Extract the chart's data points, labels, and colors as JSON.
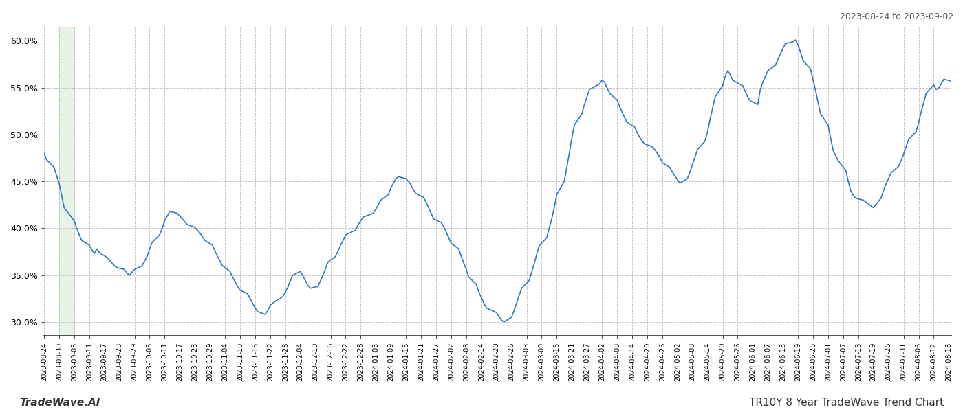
{
  "title_top_right": "2023-08-24 to 2023-09-02",
  "title_bottom_left": "TradeWave.AI",
  "title_bottom_right": "TR10Y 8 Year TradeWave Trend Chart",
  "line_color": "#2878c8",
  "highlight_color": "#c8e6c9",
  "highlight_alpha": 0.45,
  "highlight_start": "2023-08-30",
  "highlight_end": "2023-09-05",
  "ylim": [
    0.285,
    0.615
  ],
  "yticks": [
    0.3,
    0.35,
    0.4,
    0.45,
    0.5,
    0.55,
    0.6
  ],
  "background_color": "#ffffff",
  "grid_color": "#bbbbbb",
  "dates": [
    "2023-08-24",
    "2023-08-25",
    "2023-08-28",
    "2023-08-29",
    "2023-08-30",
    "2023-08-31",
    "2023-09-01",
    "2023-09-05",
    "2023-09-06",
    "2023-09-07",
    "2023-09-08",
    "2023-09-11",
    "2023-09-12",
    "2023-09-13",
    "2023-09-14",
    "2023-09-15",
    "2023-09-18",
    "2023-09-19",
    "2023-09-20",
    "2023-09-21",
    "2023-09-22",
    "2023-09-25",
    "2023-09-26",
    "2023-09-27",
    "2023-09-28",
    "2023-09-29",
    "2023-10-02",
    "2023-10-03",
    "2023-10-04",
    "2023-10-05",
    "2023-10-06",
    "2023-10-09",
    "2023-10-10",
    "2023-10-11",
    "2023-10-12",
    "2023-10-13",
    "2023-10-16",
    "2023-10-17",
    "2023-10-18",
    "2023-10-19",
    "2023-10-20",
    "2023-10-23",
    "2023-10-24",
    "2023-10-25",
    "2023-10-26",
    "2023-10-27",
    "2023-10-30",
    "2023-10-31",
    "2023-11-01",
    "2023-11-02",
    "2023-11-03",
    "2023-11-06",
    "2023-11-07",
    "2023-11-08",
    "2023-11-09",
    "2023-11-10",
    "2023-11-13",
    "2023-11-14",
    "2023-11-15",
    "2023-11-16",
    "2023-11-17",
    "2023-11-20",
    "2023-11-21",
    "2023-11-22",
    "2023-11-24",
    "2023-11-27",
    "2023-11-28",
    "2023-11-29",
    "2023-11-30",
    "2023-12-01",
    "2023-12-04",
    "2023-12-05",
    "2023-12-06",
    "2023-12-07",
    "2023-12-08",
    "2023-12-11",
    "2023-12-12",
    "2023-12-13",
    "2023-12-14",
    "2023-12-15",
    "2023-12-18",
    "2023-12-19",
    "2023-12-20",
    "2023-12-21",
    "2023-12-22",
    "2023-12-26",
    "2023-12-27",
    "2023-12-28",
    "2023-12-29",
    "2024-01-02",
    "2024-01-03",
    "2024-01-04",
    "2024-01-05",
    "2024-01-08",
    "2024-01-09",
    "2024-01-10",
    "2024-01-11",
    "2024-01-12",
    "2024-01-15",
    "2024-01-16",
    "2024-01-17",
    "2024-01-18",
    "2024-01-19",
    "2024-01-22",
    "2024-01-23",
    "2024-01-24",
    "2024-01-25",
    "2024-01-26",
    "2024-01-29",
    "2024-01-30",
    "2024-01-31",
    "2024-02-01",
    "2024-02-02",
    "2024-02-05",
    "2024-02-06",
    "2024-02-07",
    "2024-02-08",
    "2024-02-09",
    "2024-02-12",
    "2024-02-13",
    "2024-02-14",
    "2024-02-15",
    "2024-02-16",
    "2024-02-20",
    "2024-02-21",
    "2024-02-22",
    "2024-02-23",
    "2024-02-26",
    "2024-02-27",
    "2024-02-28",
    "2024-02-29",
    "2024-03-01",
    "2024-03-04",
    "2024-03-05",
    "2024-03-06",
    "2024-03-07",
    "2024-03-08",
    "2024-03-11",
    "2024-03-12",
    "2024-03-13",
    "2024-03-14",
    "2024-03-15",
    "2024-03-18",
    "2024-03-19",
    "2024-03-20",
    "2024-03-21",
    "2024-03-22",
    "2024-03-25",
    "2024-03-26",
    "2024-03-27",
    "2024-03-28",
    "2024-04-01",
    "2024-04-02",
    "2024-04-03",
    "2024-04-04",
    "2024-04-05",
    "2024-04-08",
    "2024-04-09",
    "2024-04-10",
    "2024-04-11",
    "2024-04-12",
    "2024-04-15",
    "2024-04-16",
    "2024-04-17",
    "2024-04-18",
    "2024-04-19",
    "2024-04-22",
    "2024-04-23",
    "2024-04-24",
    "2024-04-25",
    "2024-04-26",
    "2024-04-29",
    "2024-04-30",
    "2024-05-01",
    "2024-05-02",
    "2024-05-03",
    "2024-05-06",
    "2024-05-07",
    "2024-05-08",
    "2024-05-09",
    "2024-05-10",
    "2024-05-13",
    "2024-05-14",
    "2024-05-15",
    "2024-05-16",
    "2024-05-17",
    "2024-05-20",
    "2024-05-21",
    "2024-05-22",
    "2024-05-23",
    "2024-05-24",
    "2024-05-28",
    "2024-05-29",
    "2024-05-30",
    "2024-05-31",
    "2024-06-03",
    "2024-06-04",
    "2024-06-05",
    "2024-06-06",
    "2024-06-07",
    "2024-06-10",
    "2024-06-11",
    "2024-06-12",
    "2024-06-13",
    "2024-06-14",
    "2024-06-17",
    "2024-06-18",
    "2024-06-19",
    "2024-06-20",
    "2024-06-21",
    "2024-06-24",
    "2024-06-25",
    "2024-06-26",
    "2024-06-27",
    "2024-06-28",
    "2024-07-01",
    "2024-07-02",
    "2024-07-03",
    "2024-07-05",
    "2024-07-08",
    "2024-07-09",
    "2024-07-10",
    "2024-07-11",
    "2024-07-12",
    "2024-07-15",
    "2024-07-16",
    "2024-07-17",
    "2024-07-18",
    "2024-07-19",
    "2024-07-22",
    "2024-07-23",
    "2024-07-24",
    "2024-07-25",
    "2024-07-26",
    "2024-07-29",
    "2024-07-30",
    "2024-07-31",
    "2024-08-01",
    "2024-08-02",
    "2024-08-05",
    "2024-08-06",
    "2024-08-07",
    "2024-08-08",
    "2024-08-09",
    "2024-08-12",
    "2024-08-13",
    "2024-08-14",
    "2024-08-15",
    "2024-08-16",
    "2024-08-19"
  ],
  "values": [
    0.48,
    0.473,
    0.465,
    0.456,
    0.448,
    0.435,
    0.422,
    0.408,
    0.4,
    0.393,
    0.387,
    0.382,
    0.377,
    0.373,
    0.378,
    0.374,
    0.369,
    0.366,
    0.363,
    0.36,
    0.358,
    0.356,
    0.352,
    0.35,
    0.353,
    0.356,
    0.36,
    0.365,
    0.37,
    0.378,
    0.385,
    0.393,
    0.4,
    0.408,
    0.413,
    0.418,
    0.416,
    0.413,
    0.41,
    0.407,
    0.404,
    0.401,
    0.398,
    0.395,
    0.391,
    0.387,
    0.382,
    0.376,
    0.37,
    0.365,
    0.36,
    0.354,
    0.348,
    0.343,
    0.338,
    0.334,
    0.33,
    0.325,
    0.32,
    0.315,
    0.311,
    0.308,
    0.312,
    0.318,
    0.322,
    0.327,
    0.332,
    0.337,
    0.344,
    0.35,
    0.354,
    0.349,
    0.344,
    0.339,
    0.336,
    0.338,
    0.344,
    0.35,
    0.357,
    0.364,
    0.37,
    0.376,
    0.382,
    0.387,
    0.393,
    0.398,
    0.404,
    0.408,
    0.412,
    0.416,
    0.42,
    0.425,
    0.43,
    0.436,
    0.443,
    0.448,
    0.453,
    0.455,
    0.453,
    0.45,
    0.446,
    0.441,
    0.437,
    0.433,
    0.428,
    0.422,
    0.416,
    0.41,
    0.406,
    0.402,
    0.396,
    0.39,
    0.384,
    0.378,
    0.37,
    0.363,
    0.356,
    0.348,
    0.34,
    0.332,
    0.326,
    0.32,
    0.315,
    0.31,
    0.306,
    0.302,
    0.3,
    0.305,
    0.312,
    0.32,
    0.328,
    0.336,
    0.344,
    0.353,
    0.362,
    0.372,
    0.381,
    0.39,
    0.4,
    0.41,
    0.422,
    0.436,
    0.45,
    0.465,
    0.48,
    0.496,
    0.51,
    0.522,
    0.532,
    0.54,
    0.548,
    0.554,
    0.558,
    0.556,
    0.55,
    0.544,
    0.537,
    0.53,
    0.524,
    0.518,
    0.513,
    0.508,
    0.502,
    0.497,
    0.493,
    0.49,
    0.487,
    0.484,
    0.48,
    0.476,
    0.47,
    0.465,
    0.46,
    0.456,
    0.452,
    0.448,
    0.453,
    0.46,
    0.468,
    0.476,
    0.484,
    0.493,
    0.503,
    0.516,
    0.528,
    0.54,
    0.552,
    0.562,
    0.568,
    0.564,
    0.558,
    0.552,
    0.546,
    0.54,
    0.536,
    0.532,
    0.548,
    0.556,
    0.562,
    0.568,
    0.574,
    0.58,
    0.586,
    0.592,
    0.597,
    0.599,
    0.601,
    0.596,
    0.588,
    0.579,
    0.57,
    0.558,
    0.547,
    0.534,
    0.522,
    0.51,
    0.496,
    0.483,
    0.472,
    0.462,
    0.45,
    0.44,
    0.435,
    0.432,
    0.43,
    0.428,
    0.426,
    0.424,
    0.422,
    0.432,
    0.44,
    0.447,
    0.453,
    0.459,
    0.466,
    0.472,
    0.479,
    0.487,
    0.495,
    0.503,
    0.513,
    0.524,
    0.534,
    0.544,
    0.553,
    0.548,
    0.55,
    0.554,
    0.559,
    0.557
  ],
  "xtick_dates": [
    "2023-08-24",
    "2023-08-30",
    "2023-09-05",
    "2023-09-11",
    "2023-09-17",
    "2023-09-23",
    "2023-09-29",
    "2023-10-05",
    "2023-10-11",
    "2023-10-17",
    "2023-10-23",
    "2023-10-29",
    "2023-11-04",
    "2023-11-10",
    "2023-11-16",
    "2023-11-22",
    "2023-11-28",
    "2023-12-04",
    "2023-12-10",
    "2023-12-16",
    "2023-12-22",
    "2023-12-28",
    "2024-01-03",
    "2024-01-09",
    "2024-01-15",
    "2024-01-21",
    "2024-01-27",
    "2024-02-02",
    "2024-02-08",
    "2024-02-14",
    "2024-02-20",
    "2024-02-26",
    "2024-03-03",
    "2024-03-09",
    "2024-03-15",
    "2024-03-21",
    "2024-03-27",
    "2024-04-02",
    "2024-04-08",
    "2024-04-14",
    "2024-04-20",
    "2024-04-26",
    "2024-05-02",
    "2024-05-08",
    "2024-05-14",
    "2024-05-20",
    "2024-05-26",
    "2024-06-01",
    "2024-06-07",
    "2024-06-13",
    "2024-06-19",
    "2024-06-25",
    "2024-07-01",
    "2024-07-07",
    "2024-07-13",
    "2024-07-19",
    "2024-07-25",
    "2024-07-31",
    "2024-08-06",
    "2024-08-12",
    "2024-08-18"
  ]
}
